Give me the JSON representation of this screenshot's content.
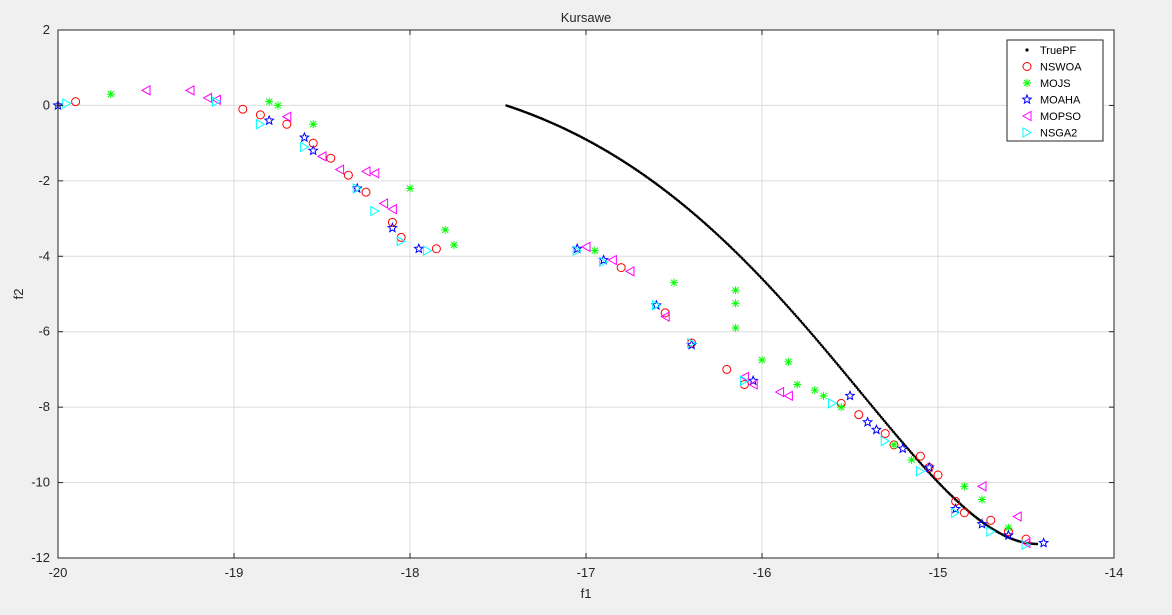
{
  "chart_data": {
    "type": "scatter",
    "title": "Kursawe",
    "xlabel": "f1",
    "ylabel": "f2",
    "xlim": [
      -20,
      -14
    ],
    "ylim": [
      -12,
      2
    ],
    "xticks": [
      -20,
      -19,
      -18,
      -17,
      -16,
      -15,
      -14
    ],
    "yticks": [
      -12,
      -10,
      -8,
      -6,
      -4,
      -2,
      0,
      2
    ],
    "grid": true,
    "legend": "top-right",
    "series": [
      {
        "name": "TruePF",
        "marker": "dot",
        "color": "#000000",
        "data": []
      },
      {
        "name": "NSWOA",
        "marker": "circle",
        "color": "#ff0000",
        "data": [
          [
            -19.9,
            0.1
          ],
          [
            -18.95,
            -0.1
          ],
          [
            -18.85,
            -0.25
          ],
          [
            -18.7,
            -0.5
          ],
          [
            -18.55,
            -1.0
          ],
          [
            -18.45,
            -1.4
          ],
          [
            -18.35,
            -1.85
          ],
          [
            -18.25,
            -2.3
          ],
          [
            -18.1,
            -3.1
          ],
          [
            -18.05,
            -3.5
          ],
          [
            -17.85,
            -3.8
          ],
          [
            -16.8,
            -4.3
          ],
          [
            -16.55,
            -5.5
          ],
          [
            -16.4,
            -6.3
          ],
          [
            -16.2,
            -7.0
          ],
          [
            -16.1,
            -7.4
          ],
          [
            -15.55,
            -7.9
          ],
          [
            -15.45,
            -8.2
          ],
          [
            -15.3,
            -8.7
          ],
          [
            -15.25,
            -9.0
          ],
          [
            -15.1,
            -9.3
          ],
          [
            -15.05,
            -9.6
          ],
          [
            -15.0,
            -9.8
          ],
          [
            -14.9,
            -10.5
          ],
          [
            -14.85,
            -10.8
          ],
          [
            -14.7,
            -11.0
          ],
          [
            -14.6,
            -11.3
          ],
          [
            -14.5,
            -11.5
          ]
        ]
      },
      {
        "name": "MOJS",
        "marker": "asterisk",
        "color": "#00ff00",
        "data": [
          [
            -19.7,
            0.3
          ],
          [
            -18.8,
            0.1
          ],
          [
            -18.75,
            0.0
          ],
          [
            -18.55,
            -0.5
          ],
          [
            -18.0,
            -2.2
          ],
          [
            -17.8,
            -3.3
          ],
          [
            -17.75,
            -3.7
          ],
          [
            -16.95,
            -3.85
          ],
          [
            -16.5,
            -4.7
          ],
          [
            -16.15,
            -4.9
          ],
          [
            -16.15,
            -5.25
          ],
          [
            -16.15,
            -5.9
          ],
          [
            -16.0,
            -6.75
          ],
          [
            -15.85,
            -6.8
          ],
          [
            -15.8,
            -7.4
          ],
          [
            -15.7,
            -7.55
          ],
          [
            -15.65,
            -7.7
          ],
          [
            -15.55,
            -8.0
          ],
          [
            -15.25,
            -9.0
          ],
          [
            -15.15,
            -9.4
          ],
          [
            -14.85,
            -10.1
          ],
          [
            -14.75,
            -10.45
          ],
          [
            -14.6,
            -11.2
          ]
        ]
      },
      {
        "name": "MOAHA",
        "marker": "star",
        "color": "#0000ff",
        "data": [
          [
            -20.0,
            0.0
          ],
          [
            -18.8,
            -0.4
          ],
          [
            -18.6,
            -0.85
          ],
          [
            -18.55,
            -1.2
          ],
          [
            -18.3,
            -2.2
          ],
          [
            -18.1,
            -3.25
          ],
          [
            -17.95,
            -3.8
          ],
          [
            -17.05,
            -3.8
          ],
          [
            -16.9,
            -4.1
          ],
          [
            -16.6,
            -5.3
          ],
          [
            -16.4,
            -6.35
          ],
          [
            -16.05,
            -7.3
          ],
          [
            -15.5,
            -7.7
          ],
          [
            -15.4,
            -8.4
          ],
          [
            -15.35,
            -8.6
          ],
          [
            -15.2,
            -9.1
          ],
          [
            -15.05,
            -9.6
          ],
          [
            -14.9,
            -10.7
          ],
          [
            -14.75,
            -11.1
          ],
          [
            -14.6,
            -11.4
          ],
          [
            -14.4,
            -11.6
          ]
        ]
      },
      {
        "name": "MOPSO",
        "marker": "triangle-left",
        "color": "#ff00ff",
        "data": [
          [
            -19.5,
            0.4
          ],
          [
            -19.25,
            0.4
          ],
          [
            -19.15,
            0.2
          ],
          [
            -19.1,
            0.15
          ],
          [
            -18.7,
            -0.3
          ],
          [
            -18.5,
            -1.35
          ],
          [
            -18.4,
            -1.7
          ],
          [
            -18.25,
            -1.75
          ],
          [
            -18.2,
            -1.8
          ],
          [
            -18.15,
            -2.6
          ],
          [
            -18.1,
            -2.75
          ],
          [
            -17.0,
            -3.75
          ],
          [
            -16.85,
            -4.1
          ],
          [
            -16.75,
            -4.4
          ],
          [
            -16.55,
            -5.6
          ],
          [
            -16.1,
            -7.2
          ],
          [
            -16.05,
            -7.4
          ],
          [
            -15.9,
            -7.6
          ],
          [
            -15.85,
            -7.7
          ],
          [
            -14.75,
            -10.1
          ],
          [
            -14.55,
            -10.9
          ],
          [
            -14.5,
            -11.6
          ]
        ]
      },
      {
        "name": "NSGA2",
        "marker": "triangle-right",
        "color": "#00ffff",
        "data": [
          [
            -19.95,
            0.05
          ],
          [
            -19.1,
            0.1
          ],
          [
            -18.85,
            -0.5
          ],
          [
            -18.6,
            -1.1
          ],
          [
            -18.3,
            -2.2
          ],
          [
            -18.2,
            -2.8
          ],
          [
            -18.05,
            -3.6
          ],
          [
            -17.9,
            -3.85
          ],
          [
            -17.05,
            -3.85
          ],
          [
            -16.9,
            -4.15
          ],
          [
            -16.6,
            -5.3
          ],
          [
            -16.4,
            -6.3
          ],
          [
            -16.1,
            -7.3
          ],
          [
            -15.6,
            -7.9
          ],
          [
            -15.3,
            -8.9
          ],
          [
            -15.1,
            -9.7
          ],
          [
            -14.9,
            -10.8
          ],
          [
            -14.7,
            -11.3
          ],
          [
            -14.5,
            -11.65
          ]
        ]
      }
    ]
  }
}
